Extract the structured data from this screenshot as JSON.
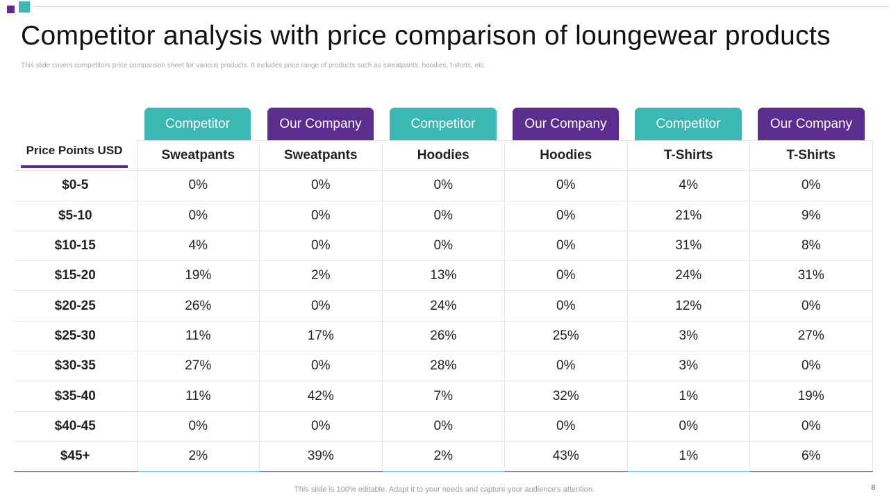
{
  "title": "Competitor analysis with price comparison of loungewear products",
  "subtitle": "This slide covers competitors price comparison sheet for various products. It includes price range of products such as sweatpants, hoodies, t-shirts, etc.",
  "colors": {
    "competitor": "#3bb8b3",
    "our_company": "#5b2d8e"
  },
  "tabs": [
    "Competitor",
    "Our Company",
    "Competitor",
    "Our Company",
    "Competitor",
    "Our Company"
  ],
  "price_points_label": "Price Points USD",
  "products": [
    "Sweatpants",
    "Sweatpants",
    "Hoodies",
    "Hoodies",
    "T-Shirts",
    "T-Shirts"
  ],
  "rows": [
    {
      "range": "$0-5",
      "values": [
        "0%",
        "0%",
        "0%",
        "0%",
        "4%",
        "0%"
      ]
    },
    {
      "range": "$5-10",
      "values": [
        "0%",
        "0%",
        "0%",
        "0%",
        "21%",
        "9%"
      ]
    },
    {
      "range": "$10-15",
      "values": [
        "4%",
        "0%",
        "0%",
        "0%",
        "31%",
        "8%"
      ]
    },
    {
      "range": "$15-20",
      "values": [
        "19%",
        "2%",
        "13%",
        "0%",
        "24%",
        "31%"
      ]
    },
    {
      "range": "$20-25",
      "values": [
        "26%",
        "0%",
        "24%",
        "0%",
        "12%",
        "0%"
      ]
    },
    {
      "range": "$25-30",
      "values": [
        "11%",
        "17%",
        "26%",
        "25%",
        "3%",
        "27%"
      ]
    },
    {
      "range": "$30-35",
      "values": [
        "27%",
        "0%",
        "28%",
        "0%",
        "3%",
        "0%"
      ]
    },
    {
      "range": "$35-40",
      "values": [
        "11%",
        "42%",
        "7%",
        "32%",
        "1%",
        "19%"
      ]
    },
    {
      "range": "$40-45",
      "values": [
        "0%",
        "0%",
        "0%",
        "0%",
        "0%",
        "0%"
      ]
    },
    {
      "range": "$45+",
      "values": [
        "2%",
        "39%",
        "2%",
        "43%",
        "1%",
        "6%"
      ]
    }
  ],
  "footer": "This slide is 100% editable. Adapt it to your needs and capture your audience's attention.",
  "page_number": "8"
}
